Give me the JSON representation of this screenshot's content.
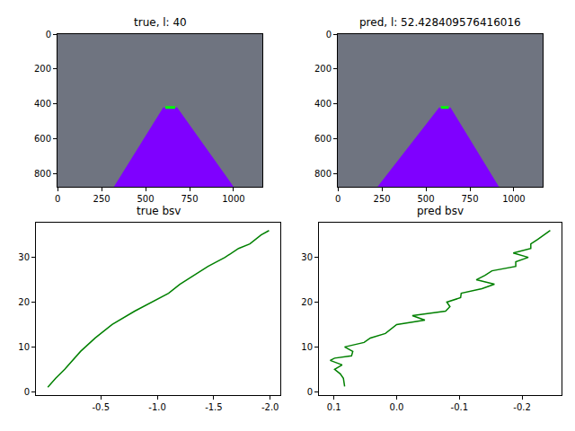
{
  "chart_data": [
    {
      "type": "image",
      "title": "true, l: 40",
      "xlim": [
        -0.5,
        1163.5
      ],
      "ylim": [
        874.5,
        -0.5
      ],
      "xticks": [
        0,
        250,
        500,
        750,
        1000
      ],
      "yticks": [
        0,
        200,
        400,
        600,
        800
      ],
      "series": [
        {
          "type": "area",
          "color": "#7f00ff",
          "x": [
            320,
            600,
            680,
            1000
          ],
          "y": [
            874,
            420,
            420,
            874
          ]
        },
        {
          "type": "line",
          "color": "#00ff00",
          "x": [
            612,
            668
          ],
          "y": [
            420,
            420
          ]
        }
      ]
    },
    {
      "type": "image",
      "title": "pred, l: 52.428409576416016",
      "xlim": [
        -0.5,
        1163.5
      ],
      "ylim": [
        874.5,
        -0.5
      ],
      "xticks": [
        0,
        250,
        500,
        750,
        1000
      ],
      "yticks": [
        0,
        200,
        400,
        600,
        800
      ],
      "series": [
        {
          "type": "area",
          "color": "#7f00ff",
          "x": [
            225,
            575,
            640,
            915
          ],
          "y": [
            874,
            420,
            420,
            874
          ]
        },
        {
          "type": "line",
          "color": "#00ff00",
          "x": [
            585,
            630
          ],
          "y": [
            420,
            420
          ]
        }
      ]
    },
    {
      "type": "line",
      "title": "true bsv",
      "xlim": [
        0.075,
        -2.09
      ],
      "ylim": [
        -0.75,
        37.75
      ],
      "xticks": [
        -0.5,
        {
          "value": -1,
          "label": "-1.0"
        },
        -1.5,
        {
          "value": -2,
          "label": "-2.0"
        }
      ],
      "yticks": [
        0,
        10,
        20,
        30
      ],
      "series": [
        {
          "color": "green",
          "x": [
            -0.03,
            -0.1,
            -0.18,
            -0.25,
            -0.32,
            -0.45,
            -0.6,
            -0.8,
            -0.95,
            -1.1,
            -1.2,
            -1.32,
            -1.45,
            -1.6,
            -1.72,
            -1.82,
            -1.92,
            -1.99
          ],
          "y": [
            1,
            3,
            5,
            7,
            9,
            12,
            15,
            18,
            20,
            22,
            24,
            26,
            28,
            30,
            32,
            33,
            35,
            36
          ]
        }
      ]
    },
    {
      "type": "line",
      "title": "pred bsv",
      "xlim": [
        0.124,
        -0.263
      ],
      "ylim": [
        -0.75,
        37.75
      ],
      "xticks": [
        0.1,
        {
          "value": 0,
          "label": "0.0"
        },
        -0.1,
        -0.2
      ],
      "yticks": [
        0,
        10,
        20,
        30
      ],
      "series": [
        {
          "color": "green",
          "x": [
            0.083,
            0.085,
            0.09,
            0.099,
            0.087,
            0.106,
            0.099,
            0.072,
            0.07,
            0.083,
            0.052,
            0.042,
            0.018,
            0.0,
            -0.045,
            -0.025,
            -0.078,
            -0.085,
            -0.08,
            -0.102,
            -0.103,
            -0.136,
            -0.156,
            -0.127,
            -0.141,
            -0.152,
            -0.19,
            -0.19,
            -0.21,
            -0.186,
            -0.214,
            -0.214,
            -0.225,
            -0.235,
            -0.245
          ],
          "y": [
            1.2,
            3,
            4,
            5,
            6,
            7,
            7.5,
            8,
            9,
            10,
            11,
            12,
            13,
            15,
            16,
            17,
            18,
            19,
            20,
            21,
            22,
            23,
            24,
            25,
            26,
            27,
            28,
            29,
            30,
            31,
            32,
            33,
            34,
            35,
            36
          ]
        }
      ]
    }
  ]
}
